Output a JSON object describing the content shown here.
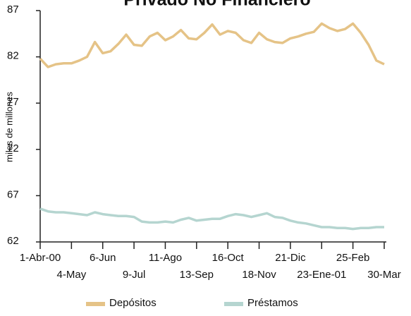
{
  "chart_data": {
    "type": "line",
    "title": "Privado No Financiero",
    "y_label": "miles de millones",
    "categories": [
      "1-Abr-00",
      null,
      null,
      null,
      "4-May",
      null,
      null,
      null,
      "6-Jun",
      null,
      null,
      null,
      "9-Jul",
      null,
      null,
      null,
      "11-Ago",
      null,
      null,
      null,
      "13-Sep",
      null,
      null,
      null,
      "16-Oct",
      null,
      null,
      null,
      "18-Nov",
      null,
      null,
      null,
      "21-Dic",
      null,
      null,
      null,
      "23-Ene-01",
      null,
      null,
      null,
      "25-Feb",
      null,
      null,
      null,
      "30-Mar"
    ],
    "series": [
      {
        "name": "Depósitos",
        "color": "#e5c387",
        "values": [
          81.8,
          80.9,
          81.2,
          81.3,
          81.3,
          81.6,
          82.0,
          83.6,
          82.4,
          82.6,
          83.4,
          84.4,
          83.3,
          83.2,
          84.2,
          84.6,
          83.8,
          84.2,
          84.9,
          84.0,
          83.9,
          84.6,
          85.5,
          84.4,
          84.8,
          84.6,
          83.8,
          83.5,
          84.6,
          83.9,
          83.6,
          83.5,
          84.0,
          84.2,
          84.5,
          84.7,
          85.6,
          85.1,
          84.8,
          85.0,
          85.6,
          84.6,
          83.3,
          81.6,
          81.2
        ]
      },
      {
        "name": "Préstamos",
        "color": "#b5d5d0",
        "values": [
          65.6,
          65.3,
          65.2,
          65.2,
          65.1,
          65.0,
          64.9,
          65.2,
          65.0,
          64.9,
          64.8,
          64.8,
          64.7,
          64.2,
          64.1,
          64.1,
          64.2,
          64.1,
          64.4,
          64.6,
          64.3,
          64.4,
          64.5,
          64.5,
          64.8,
          65.0,
          64.9,
          64.7,
          64.9,
          65.1,
          64.7,
          64.6,
          64.3,
          64.1,
          64.0,
          63.8,
          63.6,
          63.6,
          63.5,
          63.5,
          63.4,
          63.5,
          63.5,
          63.6,
          63.6
        ]
      }
    ],
    "ylim": [
      62,
      87
    ],
    "yticks": [
      62,
      67,
      72,
      77,
      82,
      87
    ],
    "grid": false,
    "legend": "bottom"
  }
}
